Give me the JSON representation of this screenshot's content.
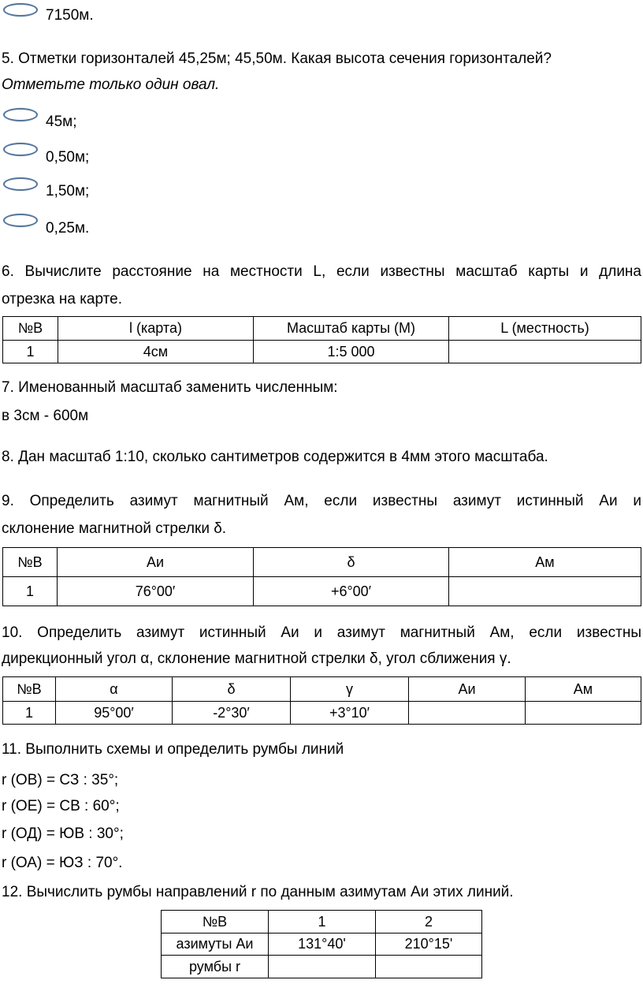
{
  "prev_option": "7150м.",
  "q5": {
    "text": "5. Отметки горизонталей 45,25м; 45,50м. Какая высота сечения горизонталей?",
    "hint": "Отметьте только один овал.",
    "options": [
      "45м;",
      "0,50м;",
      "1,50м;",
      "0,25м."
    ]
  },
  "q6": {
    "line1": "6. Вычислите расстояние на местности L, если известны масштаб карты и длина",
    "line2": "отрезка на карте.",
    "table": {
      "headers": [
        "№В",
        "l (карта)",
        "Масштаб карты (М)",
        "L (местность)"
      ],
      "rows": [
        [
          "1",
          "4см",
          "1:5 000",
          ""
        ]
      ]
    }
  },
  "q7": {
    "line1": "7. Именованный масштаб заменить численным:",
    "line2": "в 3см - 600м"
  },
  "q8": {
    "line1": "8. Дан масштаб 1:10, сколько сантиметров содержится в 4мм этого масштаба."
  },
  "q9": {
    "line1": "9. Определить азимут магнитный Ам, если известны азимут истинный Аи и",
    "line2": "склонение магнитной стрелки δ.",
    "table": {
      "headers": [
        "№В",
        "Аи",
        "δ",
        "Ам"
      ],
      "rows": [
        [
          "1",
          "76°00′",
          "+6°00′",
          ""
        ]
      ]
    }
  },
  "q10": {
    "line1": "10. Определить азимут истинный Аи и азимут магнитный Ам, если известны",
    "line2": "дирекционный угол α, склонение магнитной стрелки δ, угол сближения γ.",
    "table": {
      "headers": [
        "№В",
        "α",
        "δ",
        "γ",
        "Аи",
        "Ам"
      ],
      "rows": [
        [
          "1",
          "95°00′",
          "-2°30′",
          "+3°10′",
          "",
          ""
        ]
      ]
    }
  },
  "q11": {
    "title": "11. Выполнить схемы и определить румбы линий",
    "lines": [
      "r (ОВ) = СЗ : 35°;",
      "r (ОЕ) = СВ : 60°;",
      "r (ОД) = ЮВ : 30°;",
      "r (ОА) = ЮЗ : 70°."
    ]
  },
  "q12": {
    "title": "12. Вычислить румбы направлений r по данным азимутам Аи этих линий.",
    "table": {
      "rows": [
        [
          "№В",
          "1",
          "2"
        ],
        [
          "азимуты Аи",
          "131°40'",
          "210°15'"
        ],
        [
          "румбы r",
          "",
          ""
        ]
      ]
    }
  },
  "colors": {
    "oval": "#52759c"
  }
}
